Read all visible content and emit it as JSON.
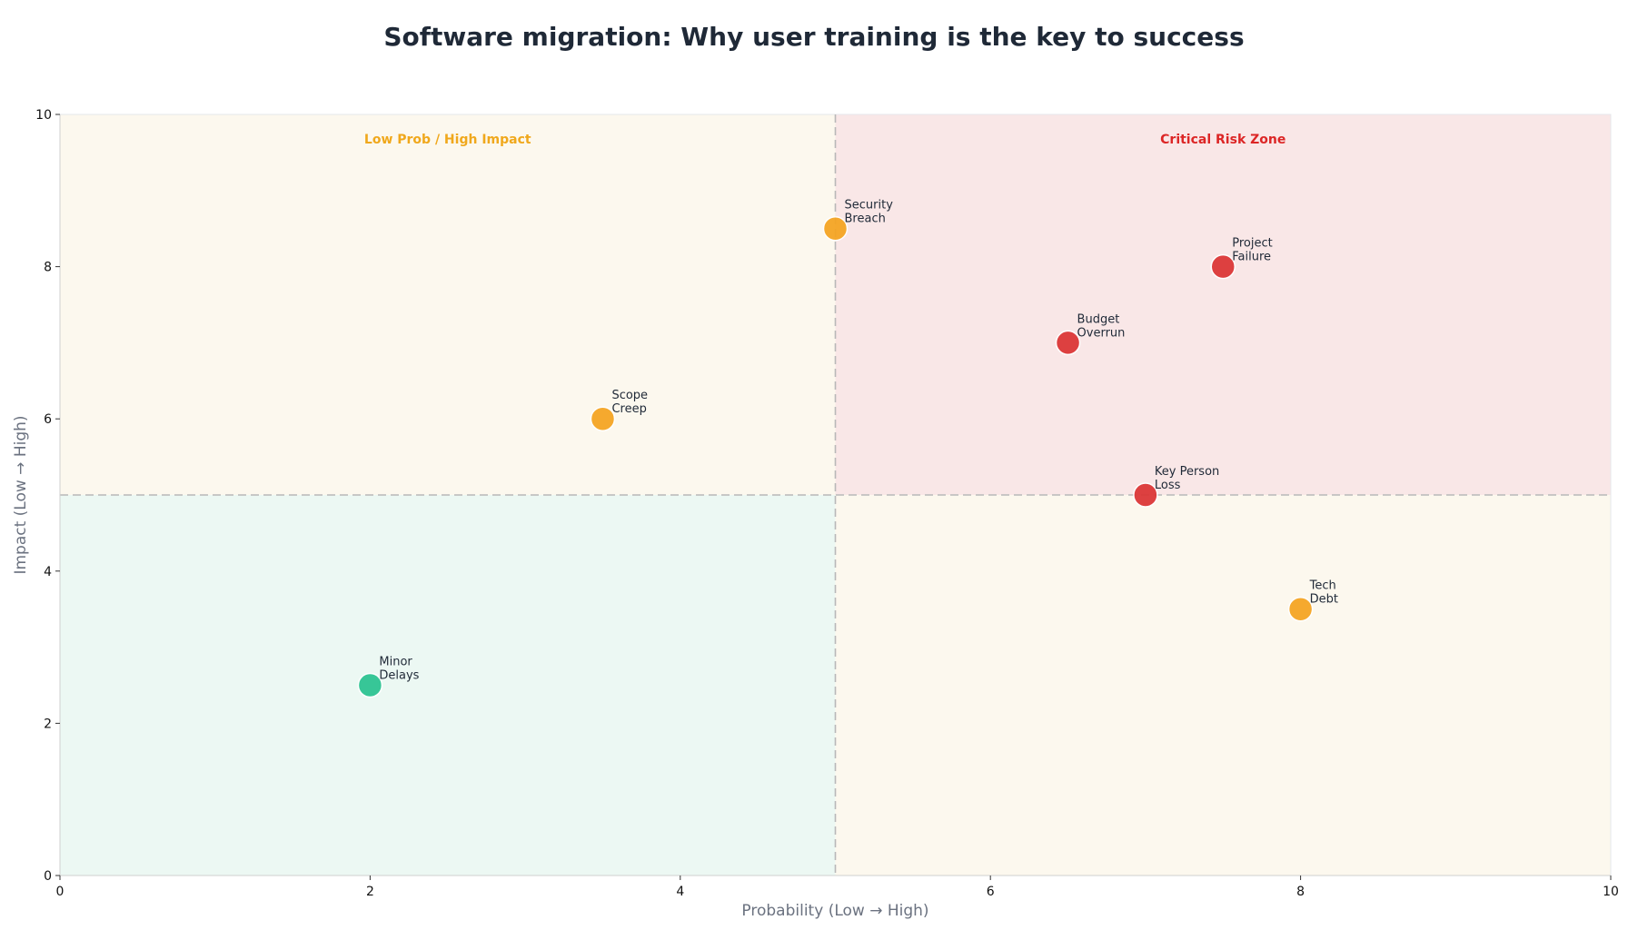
{
  "chart_data": {
    "type": "scatter",
    "title": "Software migration: Why user training is the key to success",
    "xlabel": "Probability (Low → High)",
    "ylabel": "Impact (Low → High)",
    "xlim": [
      0,
      10
    ],
    "ylim": [
      0,
      10
    ],
    "xticks": [
      0,
      2,
      4,
      6,
      8,
      10
    ],
    "yticks": [
      0,
      2,
      4,
      6,
      8,
      10
    ],
    "grid": false,
    "thresholds": {
      "x": 5,
      "y": 5
    },
    "quadrants": [
      {
        "id": "top-left",
        "label": "Low Prob / High Impact",
        "fill": "#fcf8ee",
        "label_color": "#f0a81c"
      },
      {
        "id": "top-right",
        "label": "Critical Risk Zone",
        "fill": "#f9e7e7",
        "label_color": "#dc2626"
      },
      {
        "id": "bottom-left",
        "label": "",
        "fill": "#ecf8f3",
        "label_color": "#10b981"
      },
      {
        "id": "bottom-right",
        "label": "",
        "fill": "#fcf8ee",
        "label_color": "#f0a81c"
      }
    ],
    "points": [
      {
        "name": "Security Breach",
        "lines": [
          "Security",
          "Breach"
        ],
        "x": 5.0,
        "y": 8.5,
        "color": "#f5a524"
      },
      {
        "name": "Project Failure",
        "lines": [
          "Project",
          "Failure"
        ],
        "x": 7.5,
        "y": 8.0,
        "color": "#dc3838"
      },
      {
        "name": "Budget Overrun",
        "lines": [
          "Budget",
          "Overrun"
        ],
        "x": 6.5,
        "y": 7.0,
        "color": "#dc3838"
      },
      {
        "name": "Scope Creep",
        "lines": [
          "Scope",
          "Creep"
        ],
        "x": 3.5,
        "y": 6.0,
        "color": "#f5a524"
      },
      {
        "name": "Key Person Loss",
        "lines": [
          "Key Person",
          "Loss"
        ],
        "x": 7.0,
        "y": 5.0,
        "color": "#dc3838"
      },
      {
        "name": "Tech Debt",
        "lines": [
          "Tech",
          "Debt"
        ],
        "x": 8.0,
        "y": 3.5,
        "color": "#f5a524"
      },
      {
        "name": "Minor Delays",
        "lines": [
          "Minor",
          "Delays"
        ],
        "x": 2.0,
        "y": 2.5,
        "color": "#2ec493"
      }
    ]
  }
}
